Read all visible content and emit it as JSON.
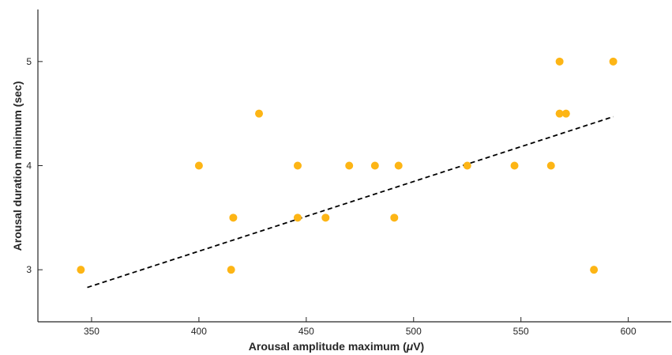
{
  "chart_data": {
    "type": "scatter",
    "xlabel": "Arousal amplitude maximum (",
    "xlabel_mu": "μ",
    "xlabel_unit_tail": "V)",
    "ylabel": "Arousal duration minimum (sec)",
    "xlim": [
      325,
      620
    ],
    "ylim": [
      2.5,
      5.5
    ],
    "x_ticks": [
      350,
      400,
      450,
      500,
      550,
      600
    ],
    "y_ticks": [
      3,
      4,
      5
    ],
    "x_tick_labels": [
      "350",
      "400",
      "450",
      "500",
      "550",
      "600"
    ],
    "y_tick_labels": [
      "3",
      "4",
      "5"
    ],
    "grid": false,
    "point_color": "#FDB515",
    "fit_color": "#000000",
    "points": [
      {
        "x": 345,
        "y": 3.0
      },
      {
        "x": 400,
        "y": 4.0
      },
      {
        "x": 415,
        "y": 3.0
      },
      {
        "x": 416,
        "y": 3.5
      },
      {
        "x": 428,
        "y": 4.5
      },
      {
        "x": 446,
        "y": 4.0
      },
      {
        "x": 446,
        "y": 3.5
      },
      {
        "x": 459,
        "y": 3.5
      },
      {
        "x": 470,
        "y": 4.0
      },
      {
        "x": 482,
        "y": 4.0
      },
      {
        "x": 491,
        "y": 3.5
      },
      {
        "x": 493,
        "y": 4.0
      },
      {
        "x": 525,
        "y": 4.0
      },
      {
        "x": 547,
        "y": 4.0
      },
      {
        "x": 564,
        "y": 4.0
      },
      {
        "x": 568,
        "y": 5.0
      },
      {
        "x": 568,
        "y": 4.5
      },
      {
        "x": 571,
        "y": 4.5
      },
      {
        "x": 584,
        "y": 3.0
      },
      {
        "x": 593,
        "y": 5.0
      }
    ],
    "fit_line": {
      "x": [
        348,
        593
      ],
      "y": [
        2.83,
        4.47
      ],
      "style": "dashed"
    }
  }
}
